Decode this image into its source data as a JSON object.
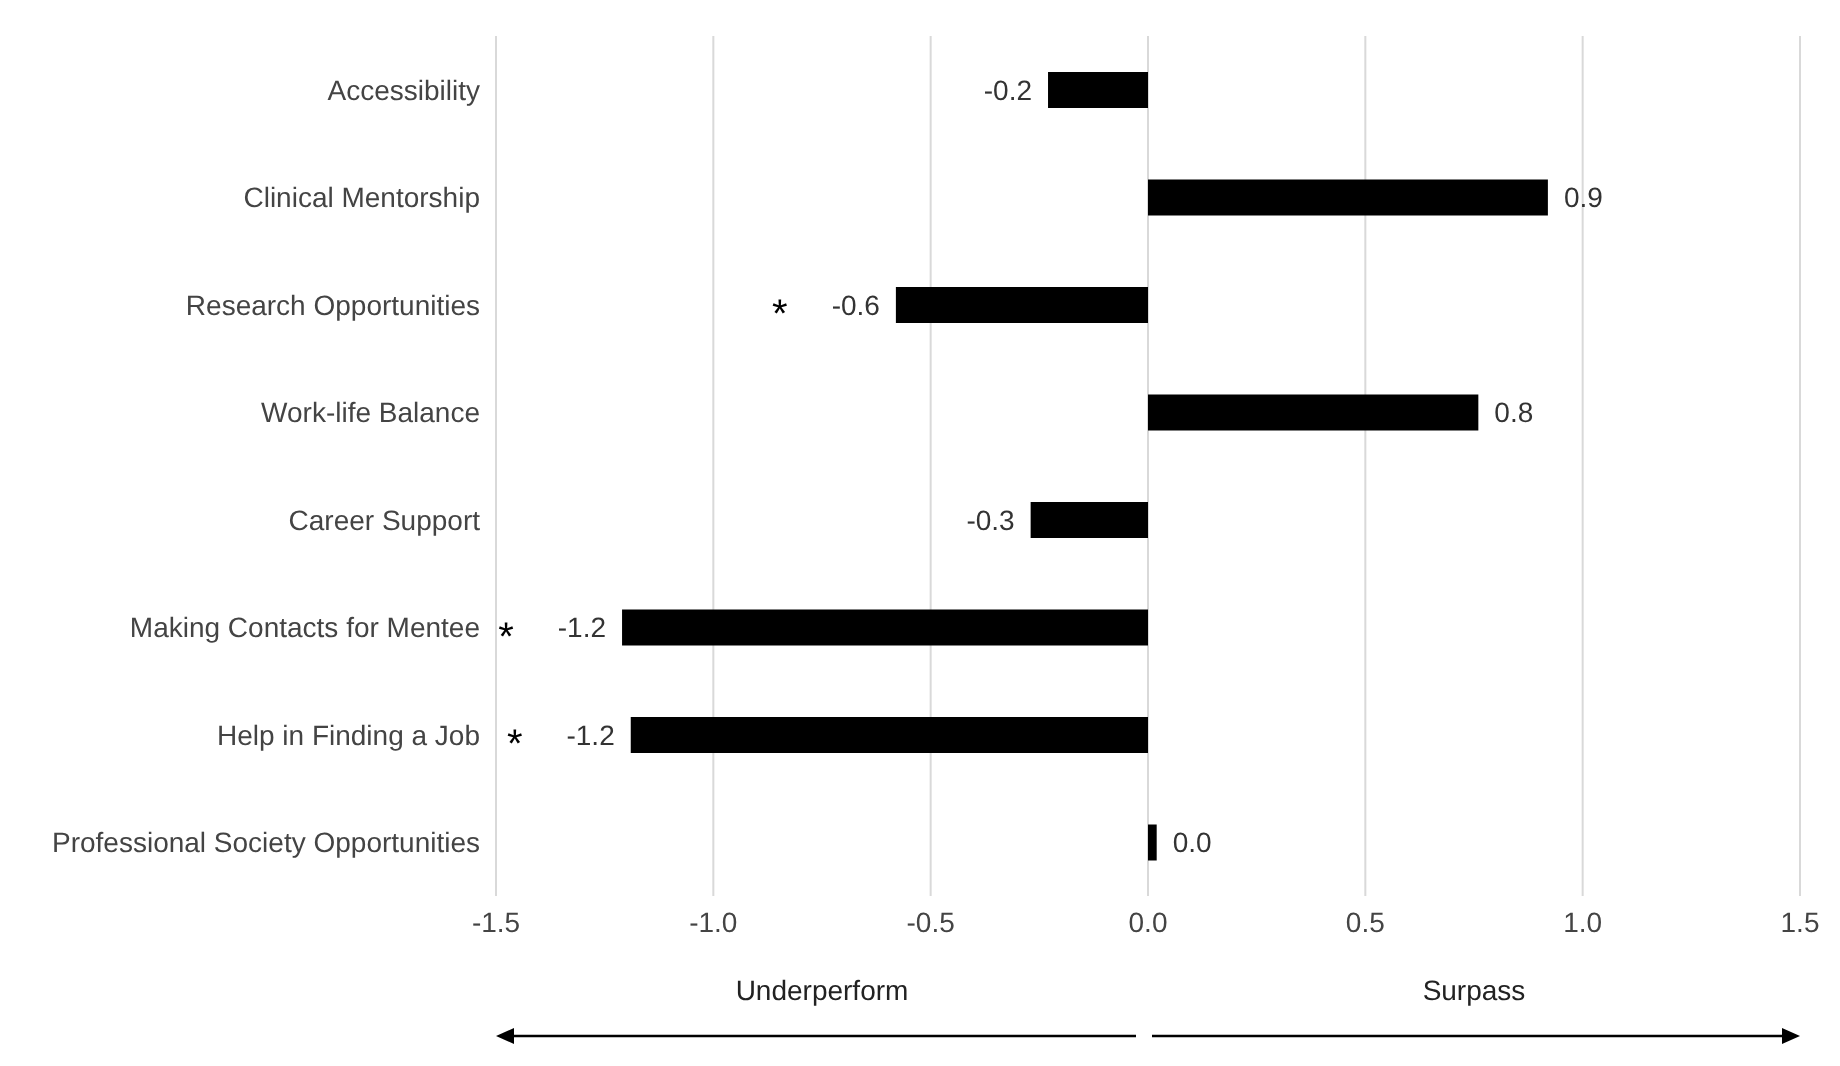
{
  "chart_data": {
    "type": "bar",
    "orientation": "horizontal",
    "categories": [
      "Accessibility",
      "Clinical Mentorship",
      "Research Opportunities",
      "Work-life Balance",
      "Career Support",
      "Making Contacts for Mentee",
      "Help in Finding a Job",
      "Professional Society Opportunities"
    ],
    "values": [
      -0.23,
      0.92,
      -0.58,
      0.76,
      -0.27,
      -1.21,
      -1.19,
      0.02
    ],
    "value_labels": [
      "-0.2",
      "0.9",
      "-0.6",
      "0.8",
      "-0.3",
      "-1.2",
      "-1.2",
      "0.0"
    ],
    "color": "#000000",
    "xlim": [
      -1.5,
      1.5
    ],
    "xticks": [
      {
        "value": -1.5,
        "label": "-1.5"
      },
      {
        "value": -1,
        "label": "-1.0"
      },
      {
        "value": -0.5,
        "label": "-0.5"
      },
      {
        "value": 0,
        "label": "0.0"
      },
      {
        "value": 0.5,
        "label": "0.5"
      },
      {
        "value": 1,
        "label": "1.0"
      },
      {
        "value": 1.5,
        "label": "1.5"
      }
    ],
    "grid": "x",
    "annotations": [
      "Underperform",
      "Surpass",
      {
        "text": "*",
        "x": -0.58,
        "y": "Research Opportunities"
      },
      {
        "text": "*",
        "x": -1.21,
        "y": "Making Contacts for Mentee"
      },
      {
        "text": "*",
        "x": -1.19,
        "y": "Help in Finding a Job"
      }
    ]
  }
}
